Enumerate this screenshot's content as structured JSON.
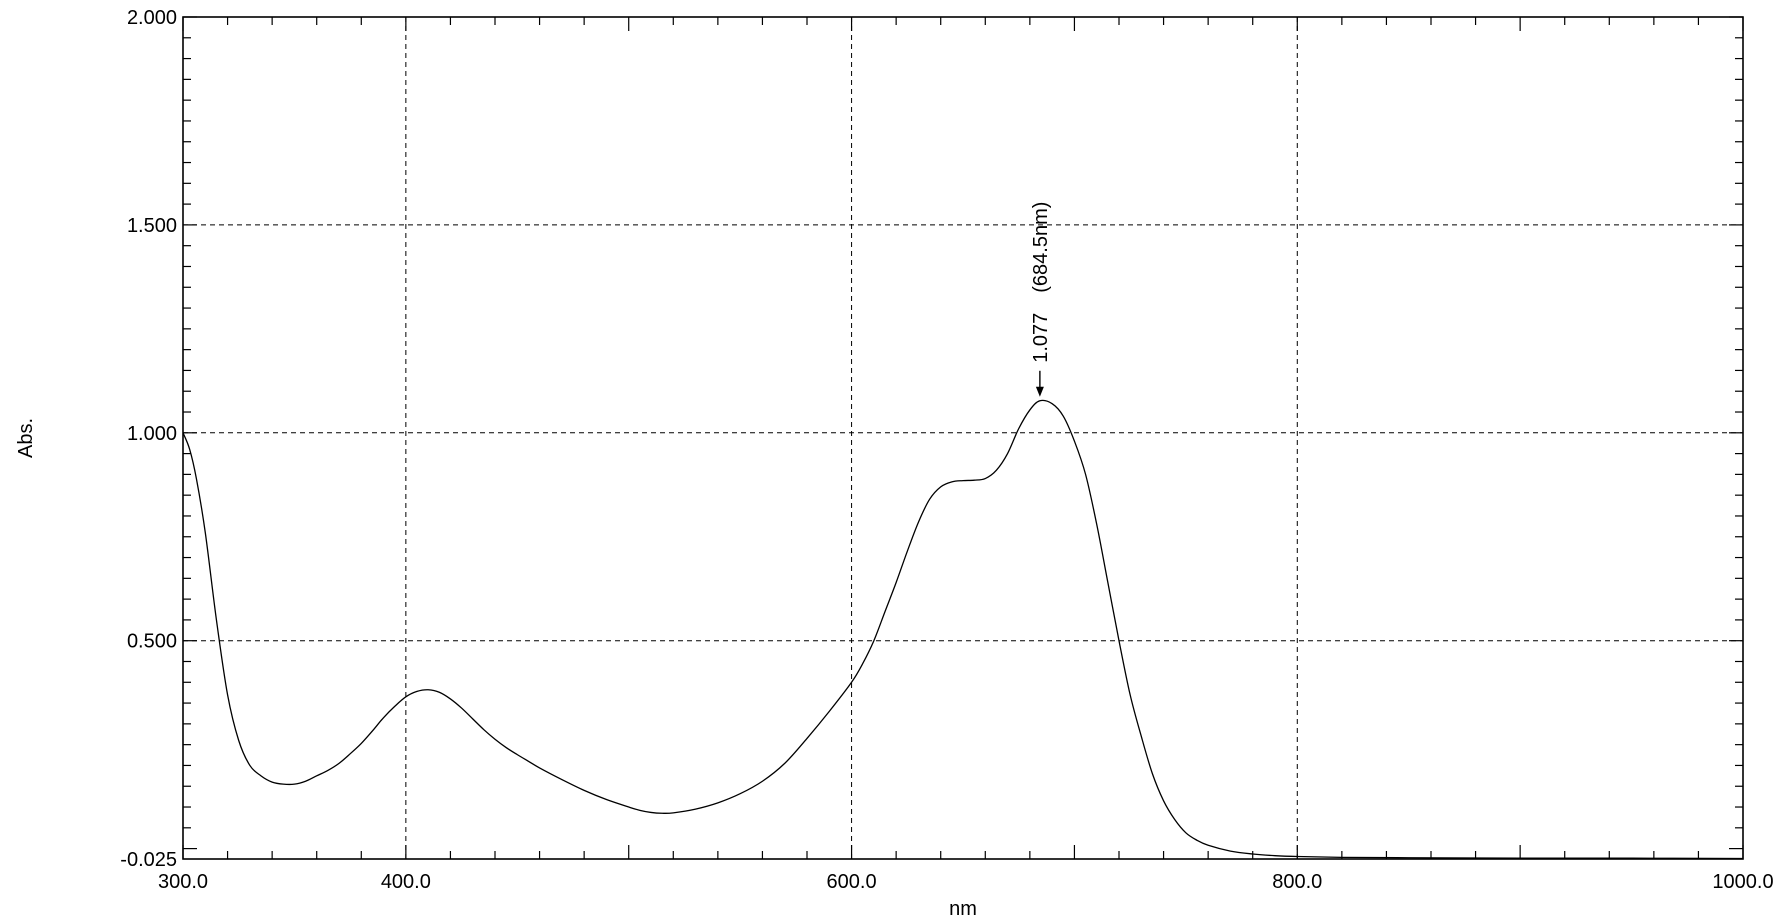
{
  "chart_data": {
    "type": "line",
    "title": "",
    "xlabel": "nm",
    "ylabel": "Abs.",
    "xlim": [
      300.0,
      1000.0
    ],
    "ylim": [
      -0.025,
      2.0
    ],
    "grid": true,
    "x_ticks": [
      300.0,
      400.0,
      600.0,
      800.0,
      1000.0
    ],
    "x_tick_labels": [
      "300.0",
      "400.0",
      "600.0",
      "800.0",
      "1000.0"
    ],
    "y_ticks": [
      -0.025,
      0.5,
      1.0,
      1.5,
      2.0
    ],
    "y_tick_labels": [
      "-0.025",
      "0.500",
      "1.000",
      "1.500",
      "2.000"
    ],
    "x_grid": [
      400.0,
      600.0,
      800.0
    ],
    "y_grid": [
      -0.025,
      0.5,
      1.0,
      1.5
    ],
    "series": [
      {
        "color": "#000000",
        "x": [
          300,
          303,
          306,
          310,
          315,
          320,
          325,
          330,
          335,
          340,
          345,
          350,
          355,
          360,
          365,
          370,
          375,
          380,
          385,
          390,
          395,
          400,
          405,
          410,
          415,
          420,
          425,
          430,
          435,
          440,
          445,
          450,
          455,
          460,
          470,
          480,
          490,
          500,
          505,
          510,
          515,
          520,
          530,
          540,
          550,
          560,
          570,
          580,
          590,
          600,
          605,
          610,
          615,
          620,
          625,
          630,
          635,
          640,
          645,
          650,
          655,
          660,
          665,
          670,
          675,
          680,
          684.5,
          690,
          695,
          700,
          705,
          710,
          715,
          720,
          725,
          730,
          735,
          740,
          745,
          750,
          755,
          760,
          770,
          780,
          790,
          800,
          820,
          850,
          900,
          950,
          1000
        ],
        "y": [
          1.0,
          0.96,
          0.89,
          0.76,
          0.55,
          0.37,
          0.26,
          0.2,
          0.175,
          0.16,
          0.155,
          0.155,
          0.162,
          0.175,
          0.188,
          0.205,
          0.228,
          0.253,
          0.283,
          0.315,
          0.342,
          0.365,
          0.378,
          0.382,
          0.376,
          0.36,
          0.338,
          0.312,
          0.286,
          0.263,
          0.243,
          0.226,
          0.21,
          0.194,
          0.166,
          0.14,
          0.118,
          0.1,
          0.092,
          0.087,
          0.085,
          0.086,
          0.095,
          0.11,
          0.132,
          0.162,
          0.205,
          0.265,
          0.33,
          0.4,
          0.445,
          0.5,
          0.57,
          0.64,
          0.715,
          0.785,
          0.84,
          0.87,
          0.882,
          0.885,
          0.886,
          0.89,
          0.91,
          0.95,
          1.01,
          1.055,
          1.077,
          1.07,
          1.04,
          0.98,
          0.9,
          0.78,
          0.64,
          0.5,
          0.37,
          0.27,
          0.18,
          0.115,
          0.07,
          0.038,
          0.02,
          0.008,
          -0.006,
          -0.013,
          -0.017,
          -0.019,
          -0.021,
          -0.022,
          -0.023,
          -0.023,
          -0.024
        ]
      }
    ],
    "annotations": [
      {
        "text": "1.077　(684.5nm)",
        "x": 684.5,
        "y": 1.077,
        "arrow": "down"
      }
    ]
  }
}
